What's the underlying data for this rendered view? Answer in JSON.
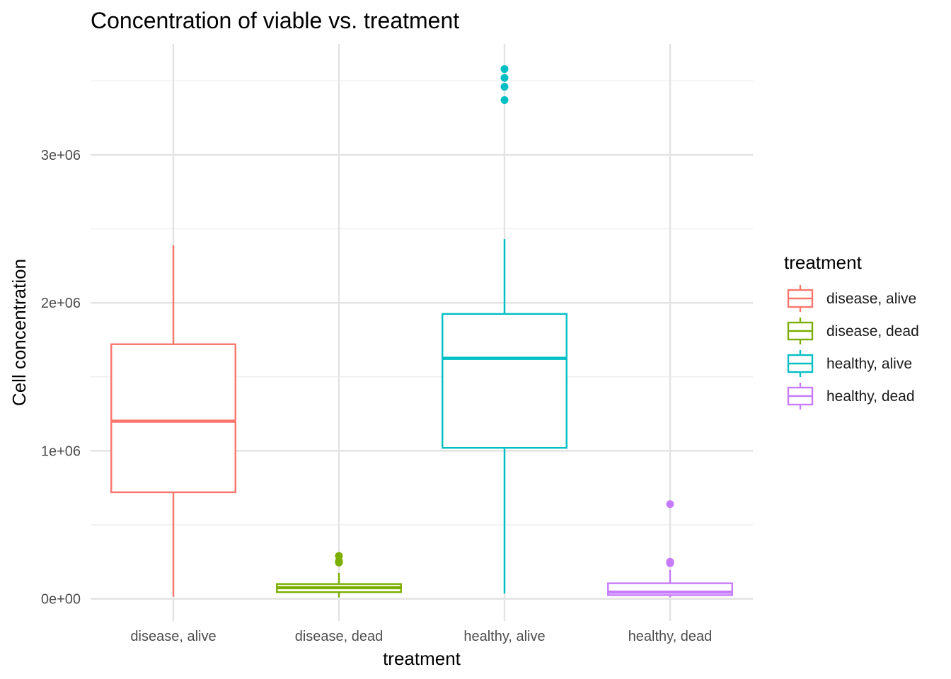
{
  "chart_data": {
    "type": "boxplot",
    "title": "Concentration of viable vs. treatment",
    "xlabel": "treatment",
    "ylabel": "Cell concentration",
    "categories": [
      "disease, alive",
      "disease, dead",
      "healthy, alive",
      "healthy, dead"
    ],
    "y_ticks": [
      0,
      1000000,
      2000000,
      3000000
    ],
    "y_tick_labels": [
      "0e+00",
      "1e+06",
      "2e+06",
      "3e+06"
    ],
    "ylim": [
      -150000,
      3750000
    ],
    "grid": true,
    "legend": {
      "title": "treatment",
      "position": "right",
      "entries": [
        "disease, alive",
        "disease, dead",
        "healthy, alive",
        "healthy, dead"
      ]
    },
    "series": [
      {
        "category": "disease, alive",
        "color": "#F8766D",
        "min": 15000,
        "q1": 720000,
        "median": 1200000,
        "q3": 1720000,
        "max": 2390000,
        "outliers": []
      },
      {
        "category": "disease, dead",
        "color": "#7CAE00",
        "min": 10000,
        "q1": 45000,
        "median": 75000,
        "q3": 100000,
        "max": 175000,
        "outliers": [
          245000,
          255000,
          290000
        ]
      },
      {
        "category": "healthy, alive",
        "color": "#00BFC4",
        "min": 35000,
        "q1": 1020000,
        "median": 1625000,
        "q3": 1925000,
        "max": 2430000,
        "outliers": [
          3370000,
          3460000,
          3520000,
          3580000
        ]
      },
      {
        "category": "healthy, dead",
        "color": "#C77CFF",
        "min": 10000,
        "q1": 25000,
        "median": 45000,
        "q3": 105000,
        "max": 195000,
        "outliers": [
          240000,
          250000,
          640000
        ]
      }
    ]
  }
}
